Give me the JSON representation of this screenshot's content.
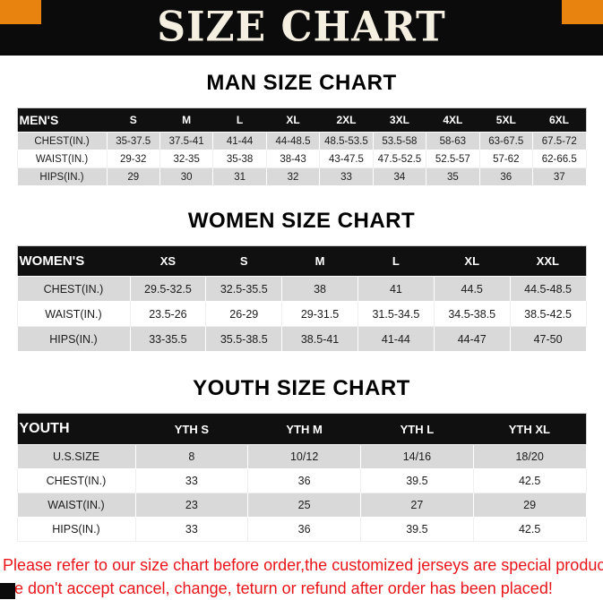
{
  "banner": {
    "title": "SIZE CHART"
  },
  "headings": {
    "men": "MAN SIZE CHART",
    "women": "WOMEN SIZE CHART",
    "youth": "YOUTH SIZE CHART"
  },
  "tables": {
    "men": {
      "header": [
        "MEN'S",
        "S",
        "M",
        "L",
        "XL",
        "2XL",
        "3XL",
        "4XL",
        "5XL",
        "6XL"
      ],
      "rows": [
        [
          "CHEST(IN.)",
          "35-37.5",
          "37.5-41",
          "41-44",
          "44-48.5",
          "48.5-53.5",
          "53.5-58",
          "58-63",
          "63-67.5",
          "67.5-72"
        ],
        [
          "WAIST(IN.)",
          "29-32",
          "32-35",
          "35-38",
          "38-43",
          "43-47.5",
          "47.5-52.5",
          "52.5-57",
          "57-62",
          "62-66.5"
        ],
        [
          "HIPS(IN.)",
          "29",
          "30",
          "31",
          "32",
          "33",
          "34",
          "35",
          "36",
          "37"
        ]
      ]
    },
    "women": {
      "header": [
        "WOMEN'S",
        "XS",
        "S",
        "M",
        "L",
        "XL",
        "XXL"
      ],
      "rows": [
        [
          "CHEST(IN.)",
          "29.5-32.5",
          "32.5-35.5",
          "38",
          "41",
          "44.5",
          "44.5-48.5"
        ],
        [
          "WAIST(IN.)",
          "23.5-26",
          "26-29",
          "29-31.5",
          "31.5-34.5",
          "34.5-38.5",
          "38.5-42.5"
        ],
        [
          "HIPS(IN.)",
          "33-35.5",
          "35.5-38.5",
          "38.5-41",
          "41-44",
          "44-47",
          "47-50"
        ]
      ]
    },
    "youth": {
      "header": [
        "YOUTH",
        "YTH S",
        "YTH M",
        "YTH L",
        "YTH XL"
      ],
      "rows": [
        [
          "U.S.SIZE",
          "8",
          "10/12",
          "14/16",
          "18/20"
        ],
        [
          "CHEST(IN.)",
          "33",
          "36",
          "39.5",
          "42.5"
        ],
        [
          "WAIST(IN.)",
          "23",
          "25",
          "27",
          "29"
        ],
        [
          "HIPS(IN.)",
          "33",
          "36",
          "39.5",
          "42.5"
        ]
      ]
    }
  },
  "disclaimer": {
    "line1": "Please refer to our size chart before order,the customized jerseys are special products,",
    "line2": "we don't accept cancel, change, teturn or refund after order has been placed!"
  },
  "colors": {
    "banner_bg": "#0b0b0b",
    "banner_text": "#f5efe2",
    "accent_orange": "#e8830f",
    "table_header_bg": "#101010",
    "row_gray": "#d9d9d9",
    "disclaimer_red": "#e8151a"
  }
}
